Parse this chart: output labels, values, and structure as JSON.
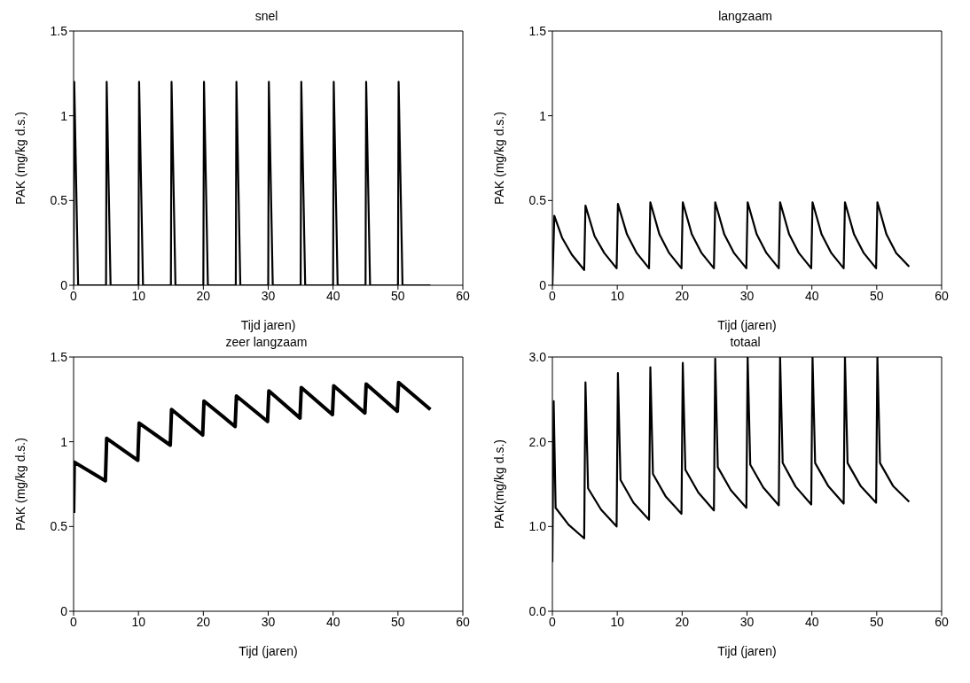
{
  "chart_data": [
    {
      "type": "line",
      "title": "snel",
      "xlabel": "Tijd jaren)",
      "ylabel": "PAK (mg/kg d.s.)",
      "color": "#000000",
      "xlim": [
        0,
        60
      ],
      "xticks": [
        0,
        10,
        20,
        30,
        40,
        50,
        60
      ],
      "ylim": [
        0,
        1.5
      ],
      "yticks": [
        0,
        0.5,
        1,
        1.5
      ],
      "x": [
        0,
        0.1,
        0.7,
        5,
        5.1,
        5.7,
        10,
        10.1,
        10.7,
        15,
        15.1,
        15.7,
        20,
        20.1,
        20.7,
        25,
        25.1,
        25.7,
        30,
        30.1,
        30.7,
        35,
        35.1,
        35.7,
        40,
        40.1,
        40.7,
        45,
        45.1,
        45.7,
        50,
        50.1,
        50.7,
        55
      ],
      "values": [
        0,
        1.2,
        0,
        0,
        1.2,
        0,
        0,
        1.2,
        0,
        0,
        1.2,
        0,
        0,
        1.2,
        0,
        0,
        1.2,
        0,
        0,
        1.2,
        0,
        0,
        1.2,
        0,
        0,
        1.2,
        0,
        0,
        1.2,
        0,
        0,
        1.2,
        0,
        0
      ]
    },
    {
      "type": "line",
      "title": "langzaam",
      "xlabel": "Tijd (jaren)",
      "ylabel": "PAK (mg/kg d.s.)",
      "color": "#000000",
      "xlim": [
        0,
        60
      ],
      "xticks": [
        0,
        10,
        20,
        30,
        40,
        50,
        60
      ],
      "ylim": [
        0,
        1.5
      ],
      "yticks": [
        0,
        0.5,
        1,
        1.5
      ],
      "x": [
        0,
        0.3,
        1.5,
        3,
        4.9,
        5.1,
        6.5,
        8,
        9.9,
        10.1,
        11.5,
        13,
        14.9,
        15.1,
        16.5,
        18,
        19.9,
        20.1,
        21.5,
        23,
        24.9,
        25.1,
        26.5,
        28,
        29.9,
        30.1,
        31.5,
        33,
        34.9,
        35.1,
        36.5,
        38,
        39.9,
        40.1,
        41.5,
        43,
        44.9,
        45.1,
        46.5,
        48,
        49.9,
        50.1,
        51.5,
        53,
        55
      ],
      "values": [
        0,
        0.41,
        0.28,
        0.18,
        0.09,
        0.47,
        0.29,
        0.19,
        0.1,
        0.48,
        0.3,
        0.19,
        0.1,
        0.49,
        0.3,
        0.19,
        0.1,
        0.49,
        0.3,
        0.19,
        0.1,
        0.49,
        0.3,
        0.19,
        0.1,
        0.49,
        0.3,
        0.19,
        0.1,
        0.49,
        0.3,
        0.19,
        0.1,
        0.49,
        0.3,
        0.19,
        0.1,
        0.49,
        0.3,
        0.19,
        0.1,
        0.49,
        0.3,
        0.19,
        0.11
      ]
    },
    {
      "type": "line",
      "title": "zeer langzaam",
      "xlabel": "Tijd (jaren)",
      "ylabel": "PAK (mg/kg d.s.)",
      "color": "#000000",
      "xlim": [
        0,
        60
      ],
      "xticks": [
        0,
        10,
        20,
        30,
        40,
        50,
        60
      ],
      "ylim": [
        0,
        1.5
      ],
      "yticks": [
        0,
        0.5,
        1,
        1.5
      ],
      "x": [
        0,
        0.1,
        4.9,
        5.1,
        9.9,
        10.1,
        14.9,
        15.1,
        19.9,
        20.1,
        24.9,
        25.1,
        29.9,
        30.1,
        34.9,
        35.1,
        39.9,
        40.1,
        44.9,
        45.1,
        49.9,
        50.1,
        55
      ],
      "values": [
        0.58,
        0.88,
        0.77,
        1.02,
        0.89,
        1.11,
        0.98,
        1.19,
        1.04,
        1.24,
        1.09,
        1.27,
        1.12,
        1.3,
        1.14,
        1.32,
        1.16,
        1.33,
        1.17,
        1.34,
        1.18,
        1.35,
        1.19
      ]
    },
    {
      "type": "line",
      "title": "totaal",
      "xlabel": "Tijd (jaren)",
      "ylabel": "PAK(mg/kg d.s.)",
      "color": "#000000",
      "xlim": [
        0,
        60
      ],
      "xticks": [
        0,
        10,
        20,
        30,
        40,
        50,
        60
      ],
      "ylim": [
        0,
        3
      ],
      "yticks": [
        {
          "value": 0,
          "label": "0.0"
        },
        {
          "value": 1,
          "label": "1.0"
        },
        {
          "value": 2,
          "label": "2.0"
        },
        {
          "value": 3,
          "label": "3.0"
        }
      ],
      "x": [
        0,
        0.2,
        0.5,
        2.5,
        4.9,
        5.1,
        5.5,
        7.5,
        9.9,
        10.1,
        10.5,
        12.5,
        14.9,
        15.1,
        15.5,
        17.5,
        19.9,
        20.1,
        20.5,
        22.5,
        24.9,
        25.1,
        25.5,
        27.5,
        29.9,
        30.1,
        30.5,
        32.5,
        34.9,
        35.1,
        35.5,
        37.5,
        39.9,
        40.1,
        40.5,
        42.5,
        44.9,
        45.1,
        45.5,
        47.5,
        49.9,
        50.1,
        50.5,
        52.5,
        55
      ],
      "values": [
        0.58,
        2.48,
        1.22,
        1.02,
        0.86,
        2.7,
        1.45,
        1.2,
        1.0,
        2.81,
        1.55,
        1.28,
        1.08,
        2.88,
        1.62,
        1.35,
        1.15,
        2.93,
        1.67,
        1.4,
        1.19,
        2.98,
        1.7,
        1.43,
        1.22,
        3.0,
        1.73,
        1.46,
        1.25,
        3.0,
        1.75,
        1.47,
        1.26,
        3.0,
        1.75,
        1.48,
        1.27,
        3.0,
        1.75,
        1.48,
        1.28,
        3.0,
        1.75,
        1.48,
        1.29
      ]
    }
  ]
}
